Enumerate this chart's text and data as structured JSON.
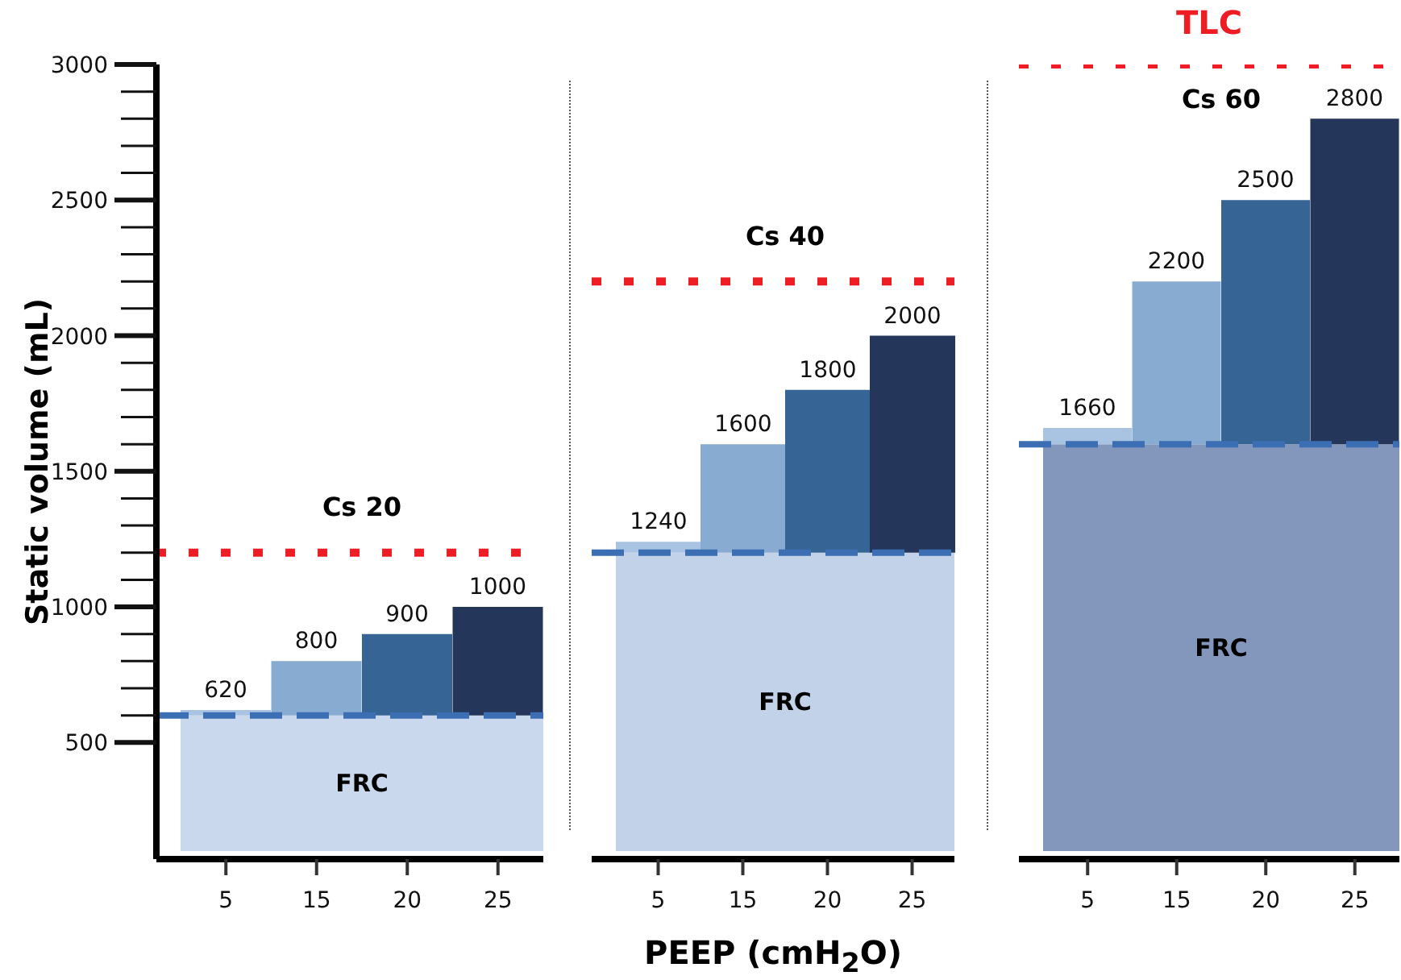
{
  "chart_data": [
    {
      "type": "bar",
      "ylabel": "Static volume (mL)",
      "categories": [
        "5",
        "15",
        "20",
        "25"
      ],
      "base": [
        600,
        600,
        600,
        600
      ],
      "values": [
        20,
        200,
        300,
        400
      ],
      "value_labels": [
        "620",
        "800",
        "900",
        "1000"
      ],
      "colors": [
        "#a9c4e3",
        "#87abd1",
        "#366494",
        "#24375a"
      ],
      "ylim": [
        70,
        3000
      ],
      "yticks": [
        500,
        {
          "value": 600,
          "label": null
        },
        {
          "value": 700,
          "label": null
        },
        {
          "value": 800,
          "label": null
        },
        {
          "value": 900,
          "label": null
        },
        1000,
        {
          "value": 1100,
          "label": null
        },
        {
          "value": 1200,
          "label": null
        },
        {
          "value": 1300,
          "label": null
        },
        {
          "value": 1400,
          "label": null
        },
        1500,
        {
          "value": 1600,
          "label": null
        },
        {
          "value": 1700,
          "label": null
        },
        {
          "value": 1800,
          "label": null
        },
        {
          "value": 1900,
          "label": null
        },
        2000,
        {
          "value": 2100,
          "label": null
        },
        {
          "value": 2200,
          "label": null
        },
        {
          "value": 2300,
          "label": null
        },
        {
          "value": 2400,
          "label": null
        },
        2500,
        {
          "value": 2600,
          "label": null
        },
        {
          "value": 2700,
          "label": null
        },
        {
          "value": 2800,
          "label": null
        },
        {
          "value": 2900,
          "label": null
        },
        3000
      ],
      "bands": [
        {
          "axis": "y",
          "from": 100,
          "to": 600,
          "label": "FRC",
          "color": "#c9d8ec"
        }
      ],
      "ref_lines": [
        {
          "axis": "y",
          "value": 600,
          "color": "#3c6eb4",
          "line_style": "dashed"
        },
        {
          "axis": "y",
          "value": 1200,
          "color": "#ee1c25",
          "line_style": "dotted"
        }
      ],
      "title": "Cs 20"
    },
    {
      "type": "bar",
      "xlabel": "PEEP (cmH$_{2}$O)",
      "categories": [
        "5",
        "15",
        "20",
        "25"
      ],
      "base": [
        1200,
        1200,
        1200,
        1200
      ],
      "values": [
        40,
        400,
        600,
        800
      ],
      "value_labels": [
        "1240",
        "1600",
        "1800",
        "2000"
      ],
      "colors": [
        "#a9c4e3",
        "#87abd1",
        "#366494",
        "#24375a"
      ],
      "ylim": [
        70,
        3000
      ],
      "tick_labels": "x",
      "bands": [
        {
          "axis": "y",
          "from": 100,
          "to": 1200,
          "label": "FRC",
          "color": "#c2d2e9"
        }
      ],
      "ref_lines": [
        {
          "axis": "y",
          "value": 1200,
          "color": "#3c6eb4",
          "line_style": "dashed"
        },
        {
          "axis": "y",
          "value": 2200,
          "color": "#ee1c25",
          "line_style": "dotted"
        }
      ],
      "title": "Cs 40"
    },
    {
      "type": "bar",
      "categories": [
        "5",
        "15",
        "20",
        "25"
      ],
      "base": [
        1600,
        1600,
        1600,
        1600
      ],
      "values": [
        60,
        600,
        900,
        1200
      ],
      "value_labels": [
        "1660",
        "2200",
        "2500",
        "2800"
      ],
      "colors": [
        "#a9c4e3",
        "#87abd1",
        "#366494",
        "#24375a"
      ],
      "ylim": [
        70,
        3000
      ],
      "tick_labels": "x",
      "bands": [
        {
          "axis": "y",
          "from": 100,
          "to": 1600,
          "label": "FRC",
          "color": "#8397bd"
        }
      ],
      "ref_lines": [
        {
          "axis": "y",
          "value": 1600,
          "color": "#3c6eb4",
          "line_style": "dashed"
        },
        {
          "axis": "y",
          "value": 3000,
          "color": "#ee1c25",
          "line_style": "dotted",
          "label": "TLC"
        }
      ],
      "title": "Cs 60"
    }
  ]
}
